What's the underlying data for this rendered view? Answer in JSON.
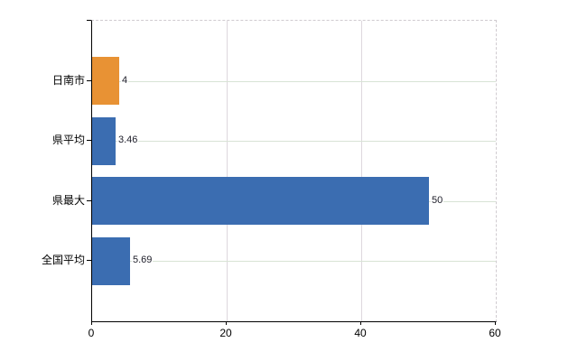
{
  "chart_data": {
    "type": "bar",
    "orientation": "horizontal",
    "title": "",
    "xlabel": "",
    "ylabel": "",
    "categories": [
      "日南市",
      "県平均",
      "県最大",
      "全国平均"
    ],
    "values": [
      4,
      3.46,
      50,
      5.69
    ],
    "value_labels": [
      "4",
      "3.46",
      "50",
      "5.69"
    ],
    "bar_colors": [
      "#E89234",
      "#3B6DB1",
      "#3B6DB1",
      "#3B6DB1"
    ],
    "xlim": [
      0,
      60
    ],
    "x_ticks": [
      0,
      20,
      40,
      60
    ],
    "x_tick_labels": [
      "0",
      "20",
      "40",
      "60"
    ],
    "grid": true,
    "legend": false
  },
  "colors": {
    "highlight_bar": "#E89234",
    "default_bar": "#3B6DB1",
    "gridline_horizontal": "#d8e3d5",
    "gridline_vertical": "#ded8de",
    "axis": "#000000",
    "value_label_text": "#1c1c28",
    "background": "#ffffff"
  }
}
